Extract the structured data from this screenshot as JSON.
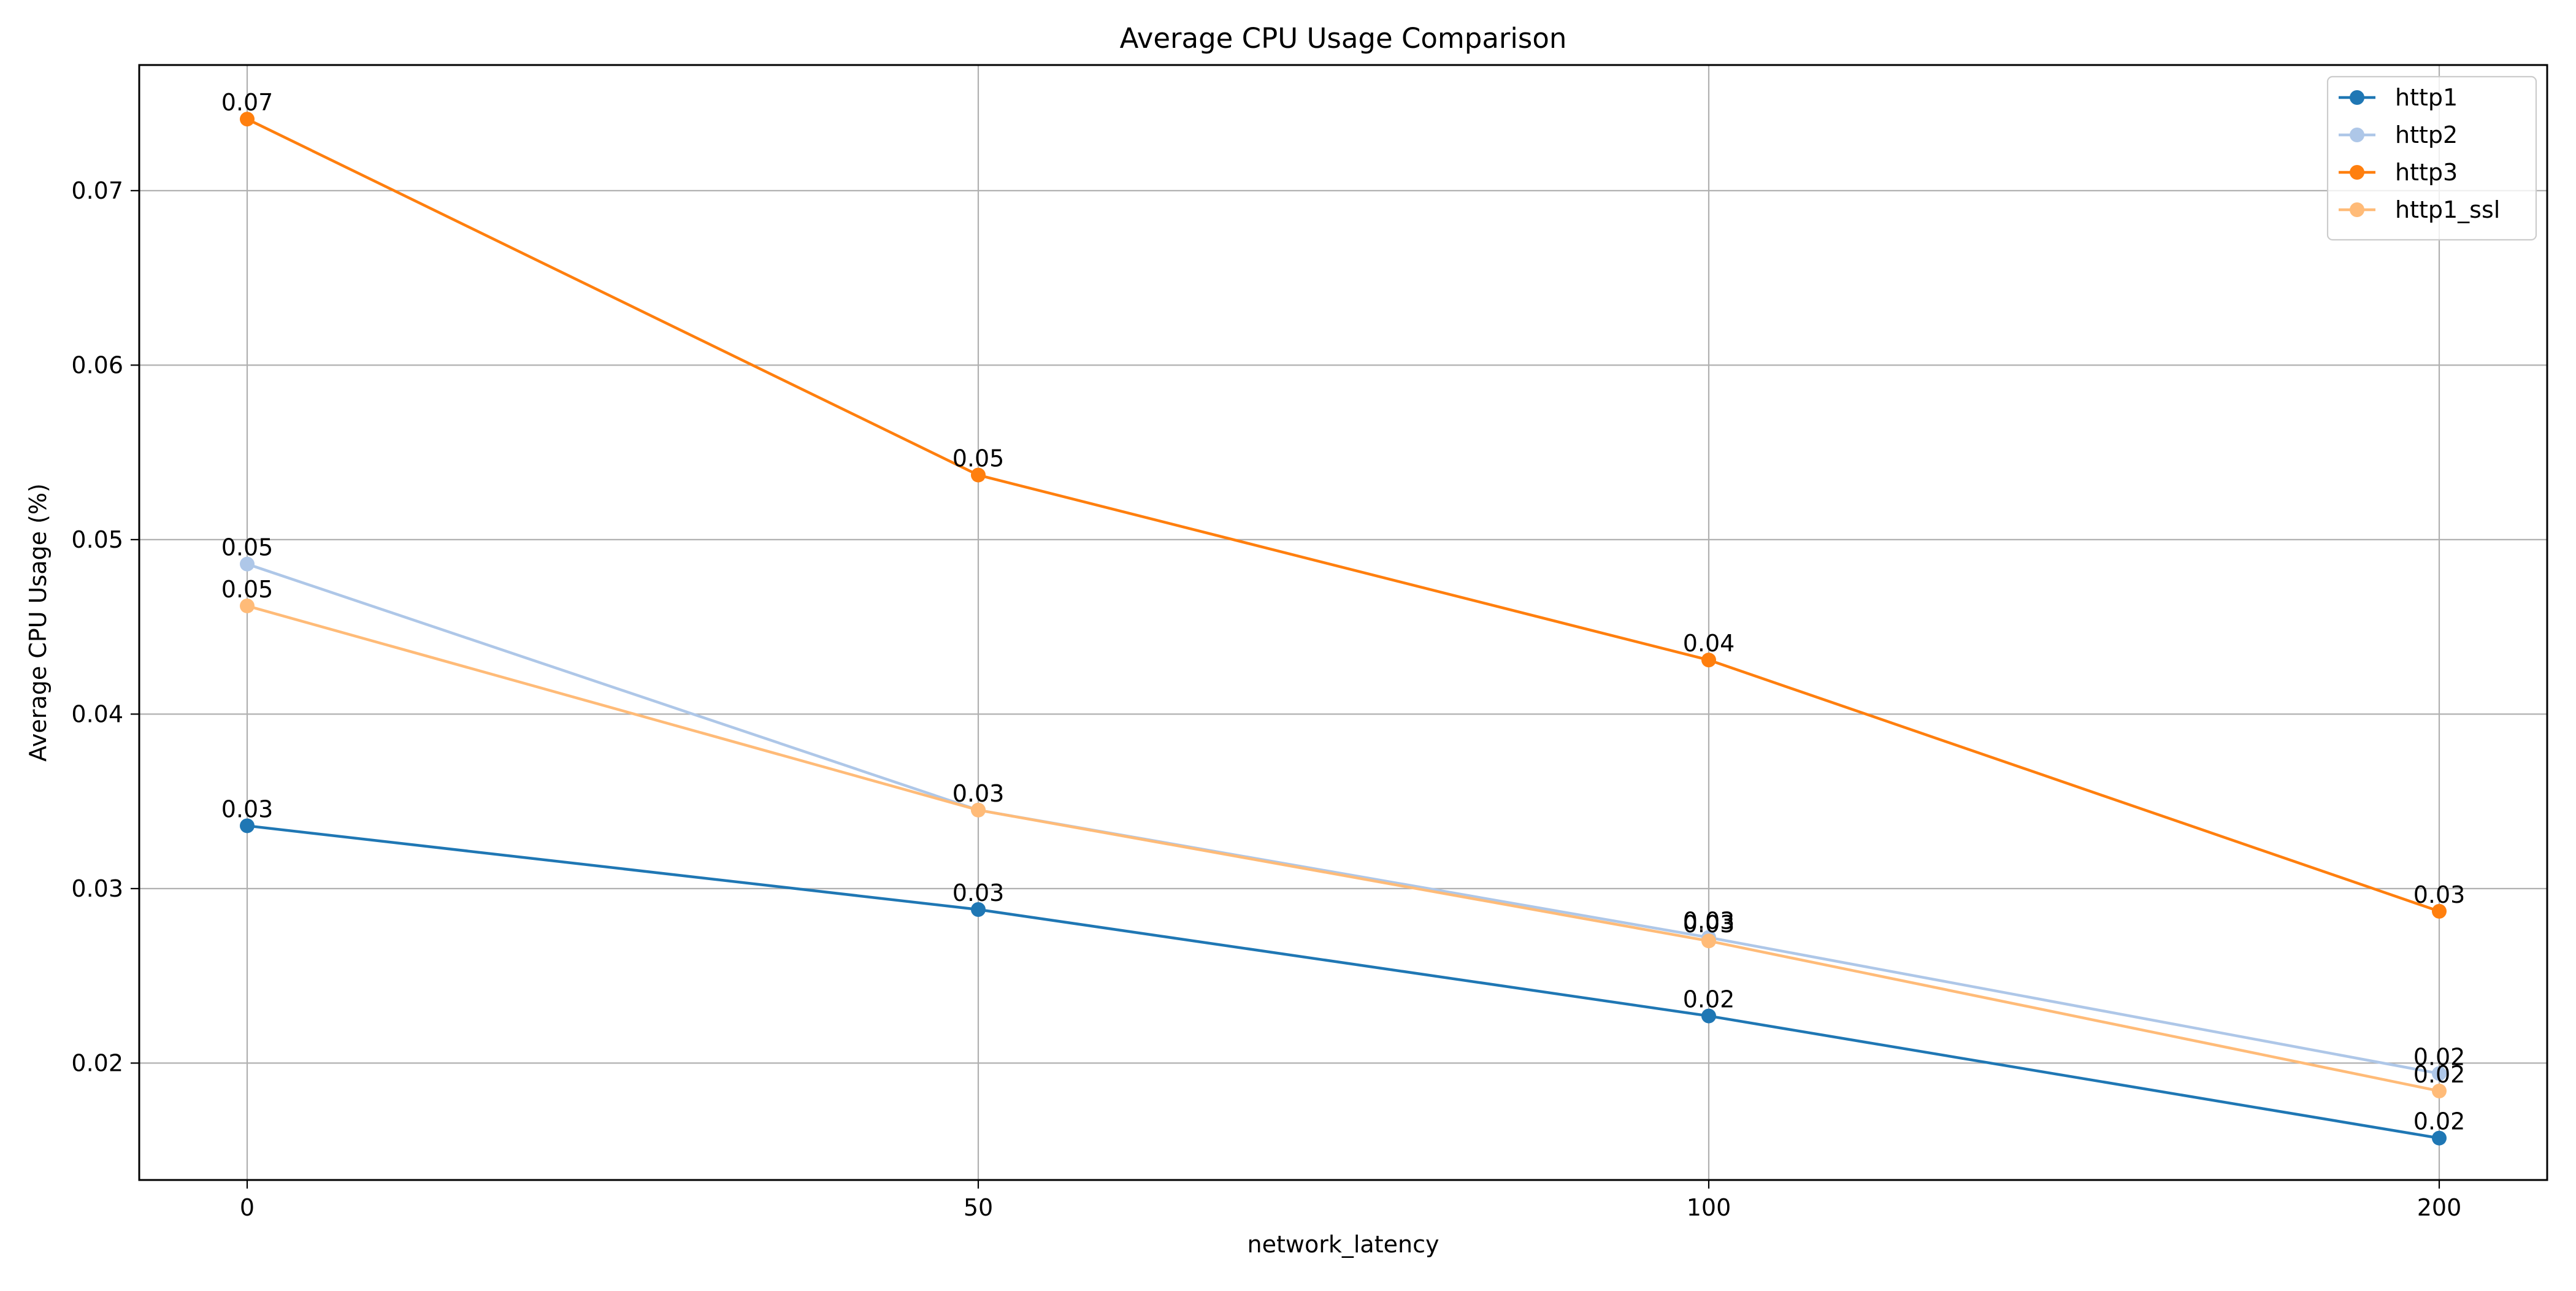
{
  "chart_data": {
    "type": "line",
    "title": "Average CPU Usage Comparison",
    "xlabel": "network_latency",
    "ylabel": "Average CPU Usage (%)",
    "categories": [
      "0",
      "50",
      "100",
      "200"
    ],
    "ylim": [
      0.0133,
      0.0772
    ],
    "yticks": [
      0.02,
      0.03,
      0.04,
      0.05,
      0.06,
      0.07
    ],
    "ytick_labels": [
      "0.02",
      "0.03",
      "0.04",
      "0.05",
      "0.06",
      "0.07"
    ],
    "grid": true,
    "legend_position": "top-right",
    "series": [
      {
        "name": "http1",
        "color": "#1f77b4",
        "values": [
          0.0336,
          0.0288,
          0.0227,
          0.0157
        ],
        "labels": [
          "0.03",
          "0.03",
          "0.02",
          "0.02"
        ]
      },
      {
        "name": "http2",
        "color": "#aec7e8",
        "values": [
          0.0486,
          0.0345,
          0.0272,
          0.0194
        ],
        "labels": [
          "0.05",
          "0.03",
          "0.03",
          "0.02"
        ]
      },
      {
        "name": "http3",
        "color": "#ff7f0e",
        "values": [
          0.0741,
          0.0537,
          0.0431,
          0.0287
        ],
        "labels": [
          "0.07",
          "0.05",
          "0.04",
          "0.03"
        ]
      },
      {
        "name": "http1_ssl",
        "color": "#ffbb78",
        "values": [
          0.0462,
          0.0345,
          0.027,
          0.0184
        ],
        "labels": [
          "0.05",
          "0.03",
          "0.03",
          "0.02"
        ]
      }
    ]
  }
}
